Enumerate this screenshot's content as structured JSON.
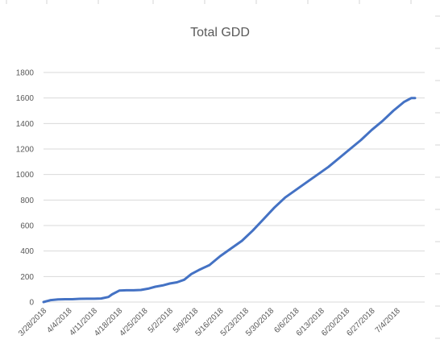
{
  "chart_data": {
    "type": "line",
    "title": "Total GDD",
    "xlabel": "",
    "ylabel": "",
    "ylim": [
      0,
      1800
    ],
    "yticks": [
      0,
      200,
      400,
      600,
      800,
      1000,
      1200,
      1400,
      1600,
      1800
    ],
    "x_tick_labels": [
      "3/28/2018",
      "4/4/2018",
      "4/11/2018",
      "4/18/2018",
      "4/25/2018",
      "5/2/2018",
      "5/9/2018",
      "5/16/2018",
      "5/23/2018",
      "5/30/2018",
      "6/6/2018",
      "6/13/2018",
      "6/20/2018",
      "6/27/2018",
      "7/4/2018"
    ],
    "x_start": "3/28/2018",
    "x_end": "7/9/2018",
    "grid": true,
    "legend": "none",
    "series": [
      {
        "color": "#4472C4",
        "x": [
          "3/28/2018",
          "3/30/2018",
          "4/1/2018",
          "4/3/2018",
          "4/5/2018",
          "4/7/2018",
          "4/9/2018",
          "4/11/2018",
          "4/13/2018",
          "4/15/2018",
          "4/16/2018",
          "4/18/2018",
          "4/20/2018",
          "4/22/2018",
          "4/24/2018",
          "4/26/2018",
          "4/28/2018",
          "4/30/2018",
          "5/2/2018",
          "5/4/2018",
          "5/6/2018",
          "5/8/2018",
          "5/10/2018",
          "5/13/2018",
          "5/16/2018",
          "5/19/2018",
          "5/22/2018",
          "5/25/2018",
          "5/28/2018",
          "5/31/2018",
          "6/3/2018",
          "6/6/2018",
          "6/9/2018",
          "6/12/2018",
          "6/15/2018",
          "6/18/2018",
          "6/21/2018",
          "6/24/2018",
          "6/27/2018",
          "6/30/2018",
          "7/3/2018",
          "7/6/2018",
          "7/8/2018",
          "7/9/2018"
        ],
        "y": [
          0,
          15,
          20,
          22,
          22,
          25,
          26,
          26,
          28,
          40,
          60,
          90,
          92,
          92,
          95,
          105,
          120,
          130,
          145,
          155,
          175,
          220,
          250,
          290,
          360,
          420,
          480,
          560,
          650,
          740,
          820,
          880,
          940,
          1000,
          1060,
          1130,
          1200,
          1270,
          1350,
          1420,
          1500,
          1570,
          1600,
          1600
        ]
      }
    ]
  }
}
